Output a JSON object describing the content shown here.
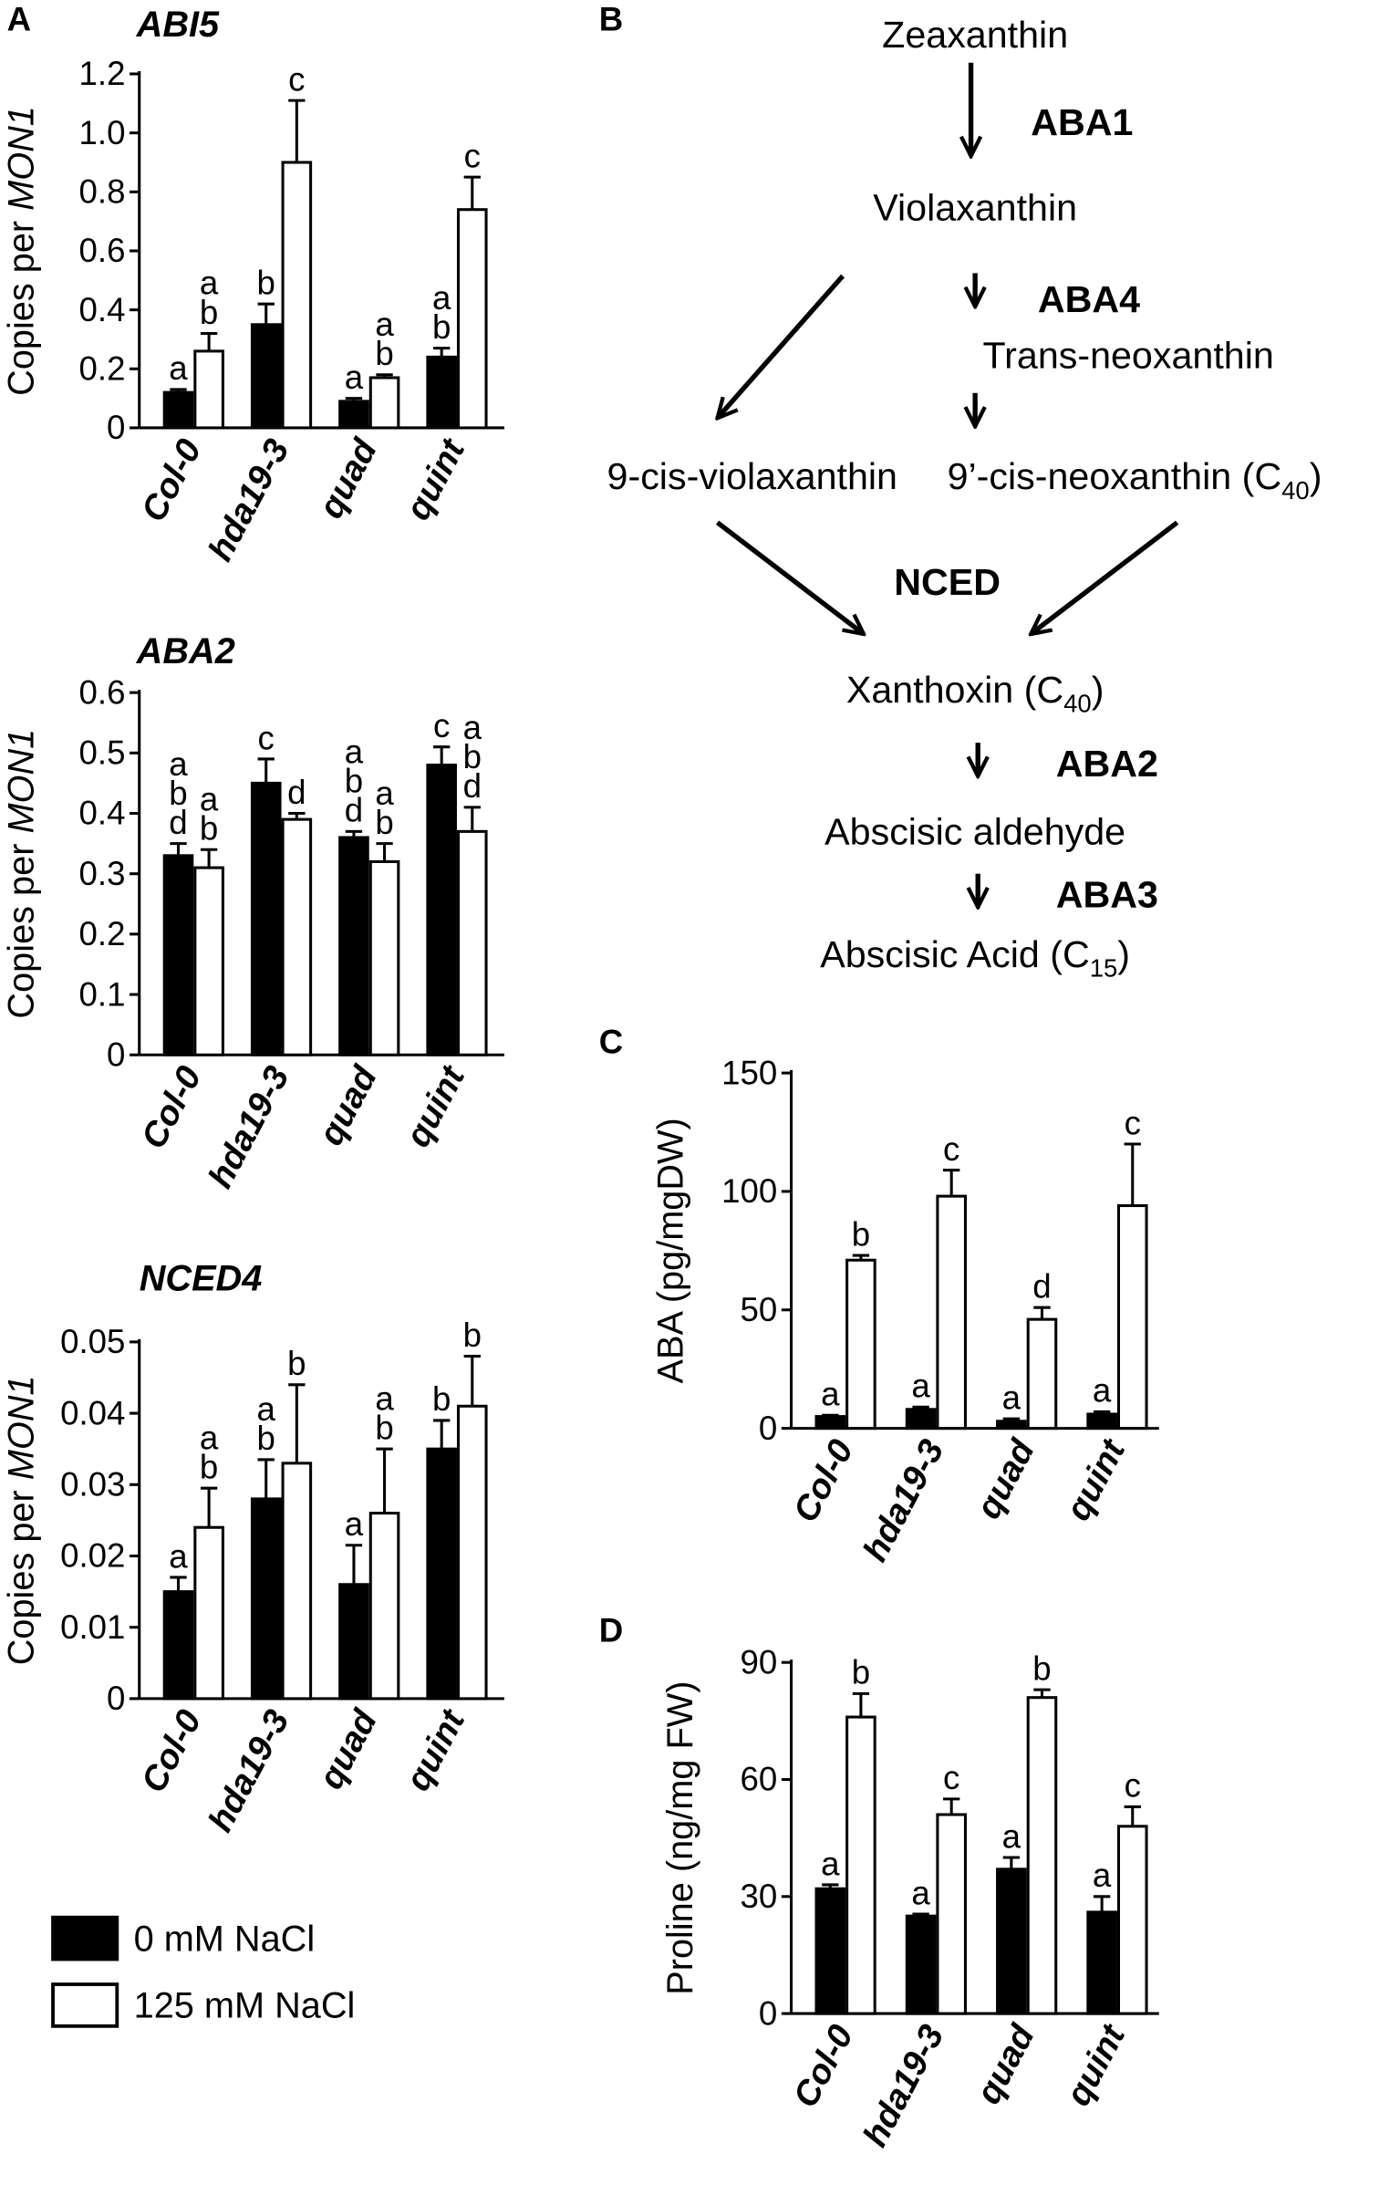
{
  "panel_labels": [
    "A",
    "B",
    "C",
    "D"
  ],
  "legend": [
    {
      "name": "0 mM NaCl",
      "color": "#000000"
    },
    {
      "name": "125 mM NaCl",
      "color": "#ffffff"
    }
  ],
  "pathway": {
    "compounds": [
      {
        "label": "Zeaxanthin"
      },
      {
        "label": "Violaxanthin"
      },
      {
        "label": "Trans-neoxanthin"
      },
      {
        "label": "9-cis-violaxanthin"
      },
      {
        "label": "9’-cis-neoxanthin (C",
        "sub": "40",
        "end": ")"
      },
      {
        "label": "Xanthoxin (C",
        "sub": "40",
        "end": ")"
      },
      {
        "label": "Abscisic aldehyde"
      },
      {
        "label": "Abscisic Acid (C",
        "sub": "15",
        "end": ")"
      }
    ],
    "enzymes": [
      "ABA1",
      "ABA4",
      "NCED",
      "ABA2",
      "ABA3"
    ]
  },
  "chart_data": [
    {
      "type": "bar",
      "title": "ABI5",
      "ylabel": [
        "Copies per ",
        "MON1"
      ],
      "categories": [
        "Col-0",
        "hda19-3",
        "quad",
        "quint"
      ],
      "ylim": [
        0,
        1.2
      ],
      "yticks": [
        0,
        0.2,
        0.4,
        0.6,
        0.8,
        {
          "value": 1,
          "label": "1.0"
        },
        1.2
      ],
      "series": [
        {
          "color": "#000000",
          "values": [
            0.12,
            0.35,
            0.09,
            0.24
          ],
          "errors": [
            0.01,
            0.07,
            0.01,
            0.03
          ],
          "letters": [
            [
              "a"
            ],
            [
              "b"
            ],
            [
              "a"
            ],
            [
              "a",
              "b"
            ]
          ]
        },
        {
          "color": "#ffffff",
          "values": [
            0.26,
            0.9,
            0.17,
            0.74
          ],
          "errors": [
            0.06,
            0.21,
            0.01,
            0.11
          ],
          "letters": [
            [
              "a",
              "b"
            ],
            [
              "c"
            ],
            [
              "a",
              "b"
            ],
            [
              "c"
            ]
          ]
        }
      ]
    },
    {
      "type": "bar",
      "title": "ABA2",
      "ylabel": [
        "Copies per ",
        "MON1"
      ],
      "categories": [
        "Col-0",
        "hda19-3",
        "quad",
        "quint"
      ],
      "ylim": [
        0,
        0.6
      ],
      "yticks": [
        0,
        0.1,
        0.2,
        0.3,
        0.4,
        0.5,
        0.6
      ],
      "series": [
        {
          "color": "#000000",
          "values": [
            0.33,
            0.45,
            0.36,
            0.48
          ],
          "errors": [
            0.02,
            0.04,
            0.01,
            0.03
          ],
          "letters": [
            [
              "a",
              "b",
              "d"
            ],
            [
              "c"
            ],
            [
              "a",
              "b",
              "d"
            ],
            [
              "c"
            ]
          ]
        },
        {
          "color": "#ffffff",
          "values": [
            0.31,
            0.39,
            0.32,
            0.37
          ],
          "errors": [
            0.03,
            0.01,
            0.03,
            0.04
          ],
          "letters": [
            [
              "a",
              "b"
            ],
            [
              "d"
            ],
            [
              "a",
              "b"
            ],
            [
              "a",
              "b",
              "d"
            ]
          ]
        }
      ]
    },
    {
      "type": "bar",
      "title": "NCED4",
      "ylabel": [
        "Copies per ",
        "MON1"
      ],
      "categories": [
        "Col-0",
        "hda19-3",
        "quad",
        "quint"
      ],
      "ylim": [
        0,
        0.05
      ],
      "yticks": [
        0,
        0.01,
        0.02,
        0.03,
        0.04,
        0.05
      ],
      "series": [
        {
          "color": "#000000",
          "values": [
            0.015,
            0.028,
            0.016,
            0.035
          ],
          "errors": [
            0.002,
            0.0055,
            0.0055,
            0.004
          ],
          "letters": [
            [
              "a"
            ],
            [
              "a",
              "b"
            ],
            [
              "a"
            ],
            [
              "b"
            ]
          ]
        },
        {
          "color": "#ffffff",
          "values": [
            0.024,
            0.033,
            0.026,
            0.041
          ],
          "errors": [
            0.0055,
            0.011,
            0.009,
            0.007
          ],
          "letters": [
            [
              "a",
              "b"
            ],
            [
              "b"
            ],
            [
              "a",
              "b"
            ],
            [
              "b"
            ]
          ]
        }
      ]
    },
    {
      "type": "bar",
      "ylabel": [
        "ABA (pg/mgDW)"
      ],
      "categories": [
        "Col-0",
        "hda19-3",
        "quad",
        "quint"
      ],
      "ylim": [
        0,
        150
      ],
      "yticks": [
        0,
        50,
        100,
        150
      ],
      "series": [
        {
          "color": "#000000",
          "values": [
            5,
            8,
            3,
            6
          ],
          "errors": [
            0.5,
            1,
            1,
            1
          ],
          "letters": [
            [
              "a"
            ],
            [
              "a"
            ],
            [
              "a"
            ],
            [
              "a"
            ]
          ]
        },
        {
          "color": "#ffffff",
          "values": [
            71,
            98,
            46,
            94
          ],
          "errors": [
            2,
            11,
            5,
            26
          ],
          "letters": [
            [
              "b"
            ],
            [
              "c"
            ],
            [
              "d"
            ],
            [
              "c"
            ]
          ]
        }
      ]
    },
    {
      "type": "bar",
      "ylabel": [
        "Proline (ng/mg FW)"
      ],
      "categories": [
        "Col-0",
        "hda19-3",
        "quad",
        "quint"
      ],
      "ylim": [
        0,
        90
      ],
      "yticks": [
        0,
        30,
        60,
        90
      ],
      "series": [
        {
          "color": "#000000",
          "values": [
            32,
            25,
            37,
            26
          ],
          "errors": [
            1,
            0.5,
            3,
            4
          ],
          "letters": [
            [
              "a"
            ],
            [
              "a"
            ],
            [
              "a"
            ],
            [
              "a"
            ]
          ]
        },
        {
          "color": "#ffffff",
          "values": [
            76,
            51,
            81,
            48
          ],
          "errors": [
            6,
            4,
            2,
            5
          ],
          "letters": [
            [
              "b"
            ],
            [
              "c"
            ],
            [
              "b"
            ],
            [
              "c"
            ]
          ]
        }
      ]
    }
  ]
}
